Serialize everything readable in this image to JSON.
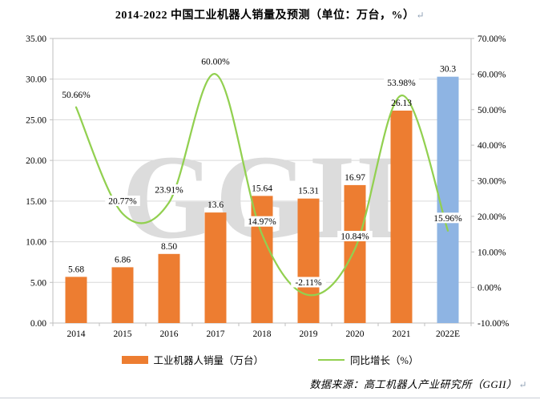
{
  "page": {
    "title": "2014-2022 中国工业机器人销量及预测（单位：万台，%）",
    "paragraph_mark": "↵",
    "source_note": "数据来源：高工机器人产业研究所（GGII）",
    "watermark": "GGII"
  },
  "chart_data": {
    "type": "bar",
    "subtype": "combo-bar-line",
    "title": "2014-2022 中国工业机器人销量及预测（单位：万台，%）",
    "categories": [
      "2014",
      "2015",
      "2016",
      "2017",
      "2018",
      "2019",
      "2020",
      "2021",
      "2022E"
    ],
    "series": [
      {
        "name": "工业机器人销量（万台）",
        "type": "bar",
        "axis": "left",
        "values": [
          5.68,
          6.86,
          8.5,
          13.6,
          15.64,
          15.31,
          16.97,
          26.13,
          30.3
        ],
        "labels": [
          "5.68",
          "6.86",
          "8.50",
          "13.6",
          "15.64",
          "15.31",
          "16.97",
          "26.13",
          "30.3"
        ],
        "colors": [
          "#ED7D31",
          "#ED7D31",
          "#ED7D31",
          "#ED7D31",
          "#ED7D31",
          "#ED7D31",
          "#ED7D31",
          "#ED7D31",
          "#8EB4E3"
        ]
      },
      {
        "name": "同比增长（%）",
        "type": "line",
        "axis": "right",
        "values": [
          50.66,
          20.77,
          23.91,
          60.0,
          14.97,
          -2.11,
          10.84,
          53.98,
          15.96
        ],
        "labels": [
          "50.66%",
          "20.77%",
          "23.91%",
          "60.00%",
          "14.97%",
          "-2.11%",
          "10.84%",
          "53.98%",
          "15.96%"
        ],
        "color": "#92D050"
      }
    ],
    "left_axis": {
      "min": 0,
      "max": 35,
      "step": 5
    },
    "right_axis": {
      "min": -10,
      "max": 70,
      "step": 10,
      "suffix": "%"
    },
    "xlabel": "",
    "ylabel": "",
    "grid": true,
    "legend_position": "bottom",
    "colors": {
      "grid": "#D9D9D9",
      "frame": "#BFBFBF",
      "watermark": "#DCDCDC",
      "label_text": "#000000"
    }
  }
}
